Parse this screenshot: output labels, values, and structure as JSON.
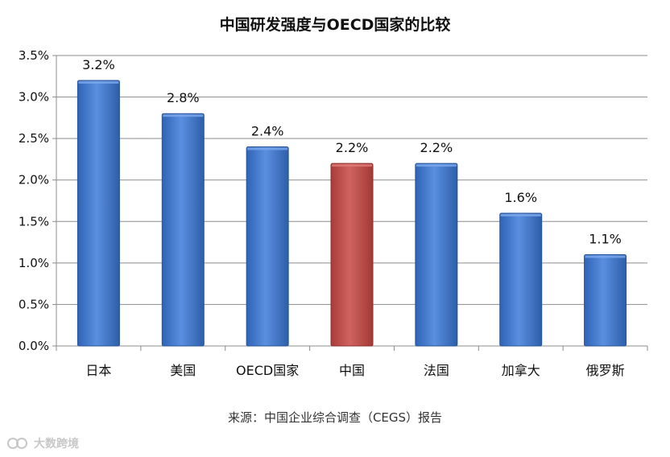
{
  "chart_data": {
    "type": "bar",
    "title": "中国研发强度与OECD国家的比较",
    "xlabel": "",
    "ylabel": "",
    "categories": [
      "日本",
      "美国",
      "OECD国家",
      "中国",
      "法国",
      "加拿大",
      "俄罗斯"
    ],
    "values": [
      3.2,
      2.8,
      2.4,
      2.2,
      2.2,
      1.6,
      1.1
    ],
    "value_labels": [
      "3.2%",
      "2.8%",
      "2.4%",
      "2.2%",
      "2.2%",
      "1.6%",
      "1.1%"
    ],
    "ylim": [
      0,
      3.5
    ],
    "yticks": [
      0,
      0.5,
      1.0,
      1.5,
      2.0,
      2.5,
      3.0,
      3.5
    ],
    "ytick_labels": [
      "0.0%",
      "0.5%",
      "1.0%",
      "1.5%",
      "2.0%",
      "2.5%",
      "3.0%",
      "3.5%"
    ],
    "grid": true,
    "legend": "none",
    "colors": {
      "default_bar": "#4a7fd0",
      "highlight_bar": "#c0504d",
      "highlight_category": "中国"
    }
  },
  "source_note": "来源：中国企业综合调查（CEGS）报告",
  "watermark": {
    "text": "大数跨境",
    "icon": "brand-logo-icon"
  }
}
